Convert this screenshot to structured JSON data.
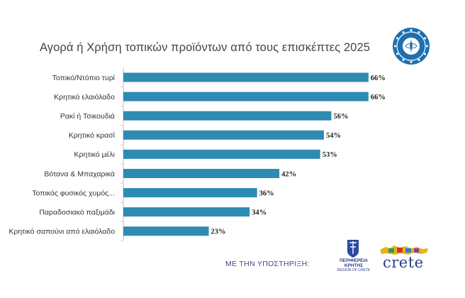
{
  "title": "Αγορά ή Χρήση τοπικών προϊόντων από τους επισκέπτες 2025",
  "colors": {
    "bar": "#2e8bb2",
    "title": "#444444",
    "footer": "#3c4a8a"
  },
  "chart_data": {
    "type": "bar",
    "orientation": "horizontal",
    "title": "Αγορά ή Χρήση τοπικών προϊόντων από τους επισκέπτες 2025",
    "categories": [
      "Τοπικό/Ντόπιο τυρί",
      "Κρητικό ελαιόλαδο",
      "Ρακί ή Τσικουδιά",
      "Κρητικό κρασί",
      "Κρητικό μέλι",
      "Βότανα & Μπαχαρικά",
      "Τοπικός φυσικός χυμός...",
      "Παραδοσιακό παξιμάδι",
      "Κρητικό σαπούνι από ελαιόλαδο"
    ],
    "values": [
      66,
      66,
      56,
      54,
      53,
      42,
      36,
      34,
      23
    ],
    "value_labels": [
      "66%",
      "66%",
      "56%",
      "54%",
      "53%",
      "42%",
      "36%",
      "34%",
      "23%"
    ],
    "unit": "%",
    "xlim": [
      0,
      70
    ],
    "grid": false,
    "legend": "none"
  },
  "footer": {
    "support_text": "ΜΕ ΤΗΝ ΥΠΟΣΤΗΡΙΞΗ:",
    "logo1_text": "ΠΕΡΙΦΕΡΕΙΑ ΚΡΗΤΗΣ",
    "logo1_subtext": "REGION OF CRETE",
    "logo2_text": "crete"
  },
  "icons": {
    "top_right": "emblem-icon",
    "footer_logo1": "region-crete-emblem-icon",
    "footer_logo2": "crete-map-icon"
  }
}
